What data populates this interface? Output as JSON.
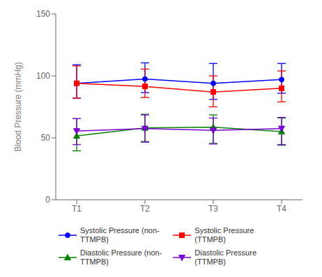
{
  "chart_data": {
    "type": "line",
    "categories": [
      "T1",
      "T2",
      "T3",
      "T4"
    ],
    "ylabel": "Blood Pressure (mmHg)",
    "ylim": [
      0,
      150
    ],
    "yticks": [
      0,
      50,
      100,
      150
    ],
    "grid": false,
    "legend": "bottom",
    "series": [
      {
        "name": "Systolic Pressure (non-\nTTMPB)",
        "color": "#0000FF",
        "marker": "circle",
        "values": [
          94.0,
          97.5,
          94.0,
          97.0
        ],
        "error_lower": [
          12,
          11,
          13,
          11
        ],
        "error_upper": [
          15,
          13,
          16,
          13
        ]
      },
      {
        "name": "Systolic Pressure\n(TTMPB)",
        "color": "#FF0000",
        "marker": "square",
        "values": [
          94.0,
          91.5,
          87.0,
          90.0
        ],
        "error_lower": [
          12,
          9,
          12,
          11
        ],
        "error_upper": [
          14,
          14,
          13,
          14
        ]
      },
      {
        "name": "Diastolic Pressure (non-\nTTMPB)",
        "color": "#008000",
        "marker": "triangle-up",
        "values": [
          51.5,
          58.0,
          58.5,
          55.0
        ],
        "error_lower": [
          12,
          11,
          13,
          11
        ],
        "error_upper": [
          14,
          11,
          10,
          11
        ]
      },
      {
        "name": "Diastolic Pressure\n(TTMPB)",
        "color": "#7B00D4",
        "marker": "triangle-down",
        "values": [
          55.5,
          57.5,
          56.0,
          57.5
        ],
        "error_lower": [
          11,
          11,
          11,
          13
        ],
        "error_upper": [
          10,
          11,
          10,
          9
        ]
      }
    ]
  }
}
